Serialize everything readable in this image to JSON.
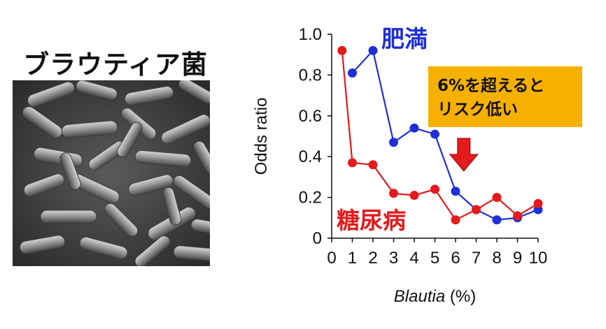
{
  "panel": {
    "title": "ブラウティア菌",
    "image_icon": "bacteria-micrograph"
  },
  "chart_data": {
    "type": "line",
    "xlabel_italic": "Blautia",
    "xlabel_unit": " (%)",
    "ylabel": "Odds ratio",
    "xlim": [
      0,
      10
    ],
    "ylim": [
      0,
      1.0
    ],
    "x_ticks": [
      "0",
      "1",
      "2",
      "3",
      "4",
      "5",
      "6",
      "7",
      "8",
      "9",
      "10"
    ],
    "y_ticks": [
      "0",
      "0.2",
      "0.4",
      "0.6",
      "0.8",
      "1.0"
    ],
    "grid": false,
    "series": [
      {
        "name": "肥満",
        "color": "#1f2fd8",
        "x": [
          1,
          2,
          3,
          4,
          5,
          6,
          7,
          8,
          9,
          10
        ],
        "y": [
          0.81,
          0.92,
          0.47,
          0.54,
          0.51,
          0.23,
          0.14,
          0.09,
          0.1,
          0.14
        ]
      },
      {
        "name": "糖尿病",
        "color": "#e41a1c",
        "x": [
          0.5,
          1,
          2,
          3,
          4,
          5,
          6,
          7,
          8,
          9,
          10
        ],
        "y": [
          0.92,
          0.37,
          0.36,
          0.22,
          0.21,
          0.24,
          0.09,
          0.14,
          0.2,
          0.11,
          0.17
        ]
      }
    ],
    "annotation": {
      "lines": [
        "6%を超えると",
        "リスク低い"
      ],
      "box_color": "#f5b000",
      "arrow_color": "#e41a1c",
      "arrow_direction": "down",
      "arrow_at_x": 6.4
    }
  }
}
